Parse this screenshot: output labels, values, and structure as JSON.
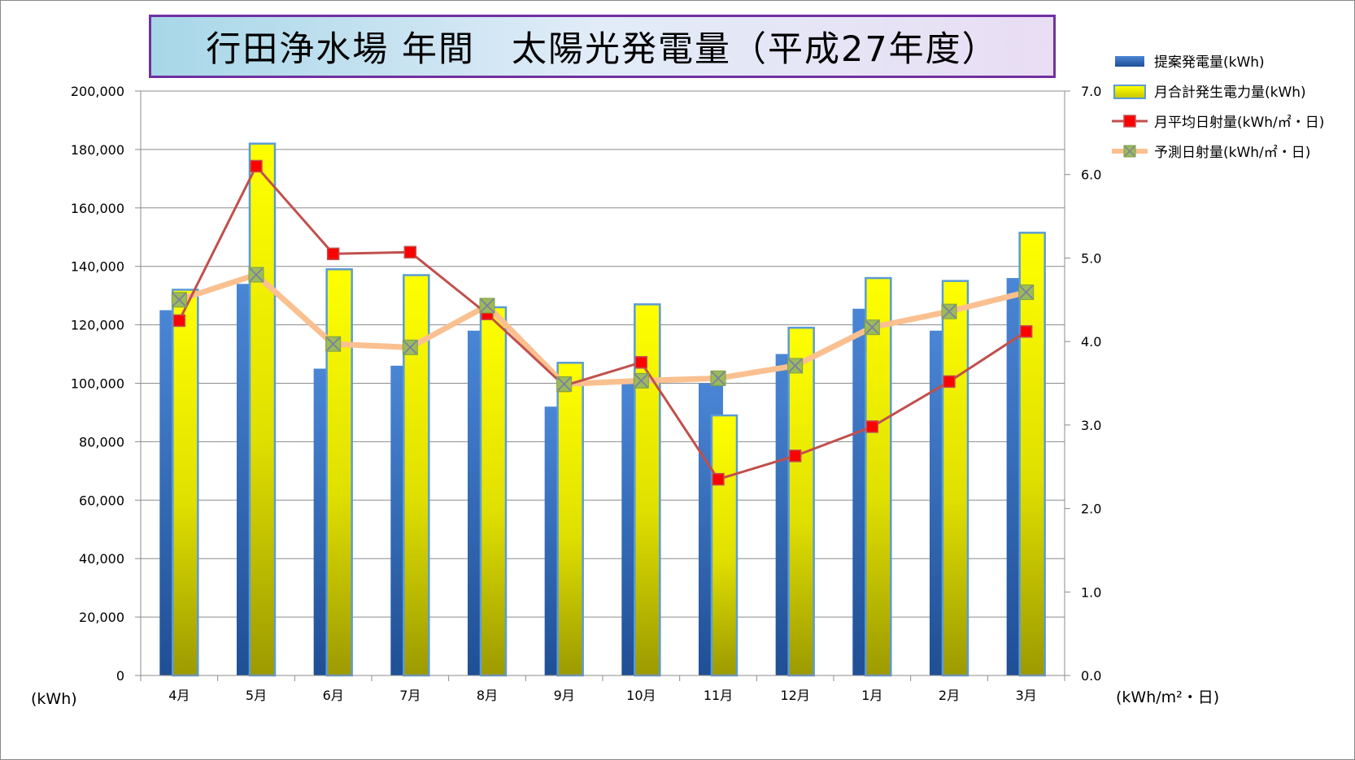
{
  "title": "行田浄水場 年間　太陽光発電量（平成27年度）",
  "colors": {
    "title_border": "#7030a0",
    "bar1": "#3a70c0",
    "bar2": "#f2f200",
    "bar2_border": "#5b9bd5",
    "line1": "#c0504d",
    "line1_marker": "#ff0000",
    "line2": "#fac090",
    "line2_marker": "#9bbb59"
  },
  "chart_data": {
    "type": "bar",
    "categories": [
      "4月",
      "5月",
      "6月",
      "7月",
      "8月",
      "9月",
      "10月",
      "11月",
      "12月",
      "1月",
      "2月",
      "3月"
    ],
    "y_left": {
      "label": "(kWh)",
      "min": 0,
      "max": 200000,
      "step": 20000,
      "ticks": [
        "0",
        "20,000",
        "40,000",
        "60,000",
        "80,000",
        "100,000",
        "120,000",
        "140,000",
        "160,000",
        "180,000",
        "200,000"
      ]
    },
    "y_right": {
      "label": "(kWh/m²・日)",
      "min": 0,
      "max": 7,
      "step": 1,
      "ticks": [
        "0.0",
        "1.0",
        "2.0",
        "3.0",
        "4.0",
        "5.0",
        "6.0",
        "7.0"
      ]
    },
    "series": [
      {
        "name": "提案発電量(kWh)",
        "kind": "bar",
        "axis": "left",
        "values": [
          125000,
          134000,
          105000,
          106000,
          118000,
          92000,
          100000,
          100000,
          110000,
          125500,
          118000,
          136000
        ]
      },
      {
        "name": "月合計発生電力量(kWh)",
        "kind": "bar",
        "axis": "left",
        "values": [
          132000,
          182000,
          139000,
          137000,
          126000,
          107000,
          127000,
          89000,
          119000,
          136000,
          135000,
          151500
        ]
      },
      {
        "name": "月平均日射量(kWh/㎡・日)",
        "kind": "line",
        "axis": "right",
        "marker": "square",
        "values": [
          4.25,
          6.1,
          5.05,
          5.07,
          4.33,
          3.47,
          3.75,
          2.35,
          2.63,
          2.98,
          3.52,
          4.12
        ]
      },
      {
        "name": "予測日射量(kWh/㎡・日)",
        "kind": "line",
        "axis": "right",
        "marker": "x-square",
        "values": [
          4.5,
          4.8,
          3.97,
          3.93,
          4.43,
          3.49,
          3.53,
          3.56,
          3.71,
          4.17,
          4.36,
          4.59
        ]
      }
    ],
    "grid": "horizontal",
    "legend_position": "right"
  }
}
